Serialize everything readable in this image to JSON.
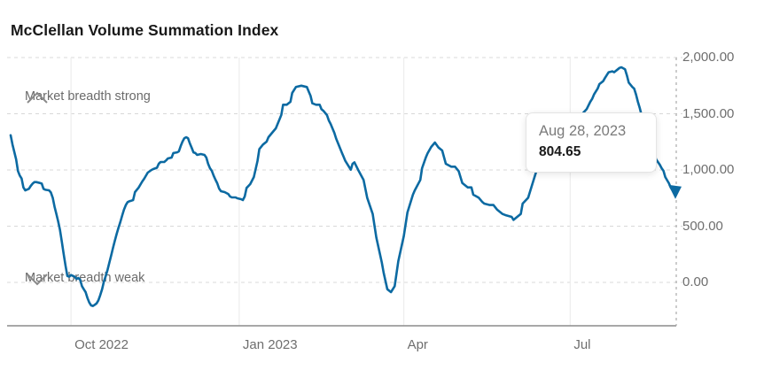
{
  "header": {
    "title": "McClellan Volume Summation Index"
  },
  "annotations": {
    "strong_label": "Market breadth strong",
    "weak_label": "Market breadth weak",
    "strong_icon": "chevron-up",
    "weak_icon": "chevron-down"
  },
  "tooltip": {
    "date": "Aug 28, 2023",
    "value": "804.65"
  },
  "colors": {
    "line": "#0c6aa2",
    "title_text": "#191919",
    "axis_text": "#6e6e6e",
    "grid_dashed": "#d8d8d8",
    "grid_vertical": "#ededed",
    "axis_line": "#8c8c8c",
    "current_dash_line": "#a9a9a9",
    "annotation_text": "#6b6b6b",
    "chevron": "#8a8a8a",
    "tooltip_date_text": "#7b7b7b",
    "tooltip_value_text": "#1a1a1a"
  },
  "chart_data": {
    "type": "line",
    "title": "McClellan Volume Summation Index",
    "xlabel": "",
    "ylabel": "",
    "x_range": [
      "Aug 29, 2022",
      "Aug 28, 2023"
    ],
    "ylim": [
      -400,
      2000
    ],
    "grid": true,
    "legend_position": "none",
    "x_ticks": [
      {
        "label": "Oct 2022",
        "day": 33
      },
      {
        "label": "Jan 2023",
        "day": 125
      },
      {
        "label": "Apr",
        "day": 215
      },
      {
        "label": "Jul",
        "day": 306
      }
    ],
    "y_ticks": [
      {
        "label": "2,000.00",
        "value": 2000
      },
      {
        "label": "1,500.00",
        "value": 1500
      },
      {
        "label": "1,000.00",
        "value": 1000
      },
      {
        "label": "500.00",
        "value": 500
      },
      {
        "label": "0.00",
        "value": 0
      }
    ],
    "highlight_point": {
      "date": "Aug 28, 2023",
      "value": 804.65
    },
    "series": [
      {
        "name": "McClellan Volume Summation Index",
        "points": [
          [
            0,
            1309
          ],
          [
            1,
            1226
          ],
          [
            3,
            1094
          ],
          [
            4,
            990
          ],
          [
            5,
            950
          ],
          [
            6,
            924
          ],
          [
            7,
            845
          ],
          [
            8,
            819
          ],
          [
            10,
            832
          ],
          [
            11,
            858
          ],
          [
            12,
            879
          ],
          [
            13,
            892
          ],
          [
            14,
            892
          ],
          [
            16,
            884
          ],
          [
            17,
            879
          ],
          [
            18,
            832
          ],
          [
            19,
            824
          ],
          [
            21,
            819
          ],
          [
            22,
            800
          ],
          [
            23,
            753
          ],
          [
            24,
            675
          ],
          [
            25,
            609
          ],
          [
            26,
            543
          ],
          [
            27,
            465
          ],
          [
            28,
            360
          ],
          [
            29,
            254
          ],
          [
            30,
            150
          ],
          [
            31,
            57
          ],
          [
            32,
            50
          ],
          [
            33,
            65
          ],
          [
            35,
            50
          ],
          [
            36,
            31
          ],
          [
            37,
            39
          ],
          [
            38,
            24
          ],
          [
            39,
            -34
          ],
          [
            40,
            -61
          ],
          [
            41,
            -87
          ],
          [
            42,
            -139
          ],
          [
            43,
            -179
          ],
          [
            44,
            -205
          ],
          [
            45,
            -210
          ],
          [
            46,
            -199
          ],
          [
            47,
            -187
          ],
          [
            48,
            -160
          ],
          [
            49,
            -113
          ],
          [
            50,
            -61
          ],
          [
            51,
            6
          ],
          [
            52,
            57
          ],
          [
            53,
            110
          ],
          [
            54,
            176
          ],
          [
            55,
            242
          ],
          [
            56,
            307
          ],
          [
            57,
            372
          ],
          [
            58,
            433
          ],
          [
            59,
            486
          ],
          [
            60,
            538
          ],
          [
            61,
            596
          ],
          [
            62,
            648
          ],
          [
            63,
            688
          ],
          [
            64,
            714
          ],
          [
            65,
            722
          ],
          [
            66,
            727
          ],
          [
            67,
            732
          ],
          [
            68,
            803
          ],
          [
            70,
            843
          ],
          [
            72,
            898
          ],
          [
            73,
            921
          ],
          [
            75,
            976
          ],
          [
            77,
            1000
          ],
          [
            78,
            1008
          ],
          [
            80,
            1020
          ],
          [
            81,
            1055
          ],
          [
            82,
            1071
          ],
          [
            84,
            1071
          ],
          [
            85,
            1085
          ],
          [
            86,
            1102
          ],
          [
            88,
            1110
          ],
          [
            89,
            1150
          ],
          [
            91,
            1157
          ],
          [
            92,
            1165
          ],
          [
            93,
            1213
          ],
          [
            94,
            1252
          ],
          [
            95,
            1283
          ],
          [
            96,
            1291
          ],
          [
            97,
            1283
          ],
          [
            98,
            1236
          ],
          [
            99,
            1197
          ],
          [
            100,
            1157
          ],
          [
            101,
            1150
          ],
          [
            102,
            1134
          ],
          [
            104,
            1142
          ],
          [
            106,
            1134
          ],
          [
            107,
            1110
          ],
          [
            108,
            1055
          ],
          [
            109,
            1016
          ],
          [
            110,
            992
          ],
          [
            111,
            950
          ],
          [
            112,
            913
          ],
          [
            113,
            882
          ],
          [
            114,
            835
          ],
          [
            115,
            811
          ],
          [
            117,
            803
          ],
          [
            119,
            787
          ],
          [
            120,
            764
          ],
          [
            121,
            756
          ],
          [
            123,
            756
          ],
          [
            124,
            748
          ],
          [
            126,
            740
          ],
          [
            127,
            732
          ],
          [
            128,
            764
          ],
          [
            129,
            840
          ],
          [
            131,
            874
          ],
          [
            133,
            937
          ],
          [
            135,
            1079
          ],
          [
            136,
            1186
          ],
          [
            138,
            1226
          ],
          [
            140,
            1252
          ],
          [
            141,
            1291
          ],
          [
            143,
            1331
          ],
          [
            145,
            1370
          ],
          [
            146,
            1409
          ],
          [
            147,
            1449
          ],
          [
            148,
            1490
          ],
          [
            149,
            1580
          ],
          [
            151,
            1580
          ],
          [
            153,
            1606
          ],
          [
            154,
            1685
          ],
          [
            156,
            1738
          ],
          [
            157,
            1742
          ],
          [
            159,
            1750
          ],
          [
            162,
            1738
          ],
          [
            163,
            1698
          ],
          [
            164,
            1659
          ],
          [
            165,
            1593
          ],
          [
            167,
            1580
          ],
          [
            169,
            1580
          ],
          [
            170,
            1540
          ],
          [
            171,
            1527
          ],
          [
            173,
            1488
          ],
          [
            174,
            1440
          ],
          [
            175,
            1409
          ],
          [
            176,
            1370
          ],
          [
            177,
            1331
          ],
          [
            178,
            1280
          ],
          [
            180,
            1199
          ],
          [
            181,
            1160
          ],
          [
            182,
            1121
          ],
          [
            183,
            1081
          ],
          [
            185,
            1029
          ],
          [
            186,
            1002
          ],
          [
            187,
            1055
          ],
          [
            188,
            1068
          ],
          [
            190,
            1002
          ],
          [
            193,
            911
          ],
          [
            195,
            753
          ],
          [
            198,
            609
          ],
          [
            200,
            399
          ],
          [
            203,
            176
          ],
          [
            204,
            84
          ],
          [
            206,
            -61
          ],
          [
            208,
            -87
          ],
          [
            210,
            -34
          ],
          [
            212,
            189
          ],
          [
            215,
            412
          ],
          [
            217,
            622
          ],
          [
            220,
            780
          ],
          [
            221,
            819
          ],
          [
            224,
            911
          ],
          [
            225,
            1016
          ],
          [
            227,
            1108
          ],
          [
            228,
            1147
          ],
          [
            230,
            1205
          ],
          [
            232,
            1244
          ],
          [
            234,
            1199
          ],
          [
            236,
            1173
          ],
          [
            238,
            1055
          ],
          [
            241,
            1029
          ],
          [
            243,
            1029
          ],
          [
            245,
            990
          ],
          [
            247,
            884
          ],
          [
            250,
            845
          ],
          [
            252,
            845
          ],
          [
            253,
            780
          ],
          [
            256,
            753
          ],
          [
            258,
            714
          ],
          [
            259,
            701
          ],
          [
            262,
            688
          ],
          [
            264,
            688
          ],
          [
            266,
            648
          ],
          [
            269,
            609
          ],
          [
            271,
            596
          ],
          [
            274,
            583
          ],
          [
            275,
            556
          ],
          [
            277,
            583
          ],
          [
            279,
            609
          ],
          [
            280,
            701
          ],
          [
            283,
            753
          ],
          [
            285,
            858
          ],
          [
            287,
            963
          ],
          [
            289,
            1068
          ],
          [
            292,
            1134
          ],
          [
            297,
            1213
          ],
          [
            302,
            1315
          ],
          [
            307,
            1409
          ],
          [
            312,
            1488
          ],
          [
            315,
            1541
          ],
          [
            317,
            1606
          ],
          [
            318,
            1632
          ],
          [
            319,
            1672
          ],
          [
            321,
            1724
          ],
          [
            322,
            1764
          ],
          [
            324,
            1790
          ],
          [
            325,
            1817
          ],
          [
            327,
            1869
          ],
          [
            329,
            1877
          ],
          [
            330,
            1869
          ],
          [
            332,
            1895
          ],
          [
            333,
            1908
          ],
          [
            334,
            1913
          ],
          [
            336,
            1895
          ],
          [
            337,
            1842
          ],
          [
            338,
            1777
          ],
          [
            340,
            1738
          ],
          [
            341,
            1724
          ],
          [
            342,
            1672
          ],
          [
            343,
            1606
          ],
          [
            344,
            1554
          ],
          [
            345,
            1490
          ],
          [
            347,
            1409
          ],
          [
            349,
            1291
          ],
          [
            351,
            1189
          ],
          [
            353,
            1094
          ],
          [
            355,
            1047
          ],
          [
            356,
            1016
          ],
          [
            357,
            992
          ],
          [
            358,
            937
          ],
          [
            360,
            882
          ],
          [
            361,
            843
          ],
          [
            362,
            819
          ],
          [
            364,
            804.65
          ]
        ]
      }
    ]
  }
}
